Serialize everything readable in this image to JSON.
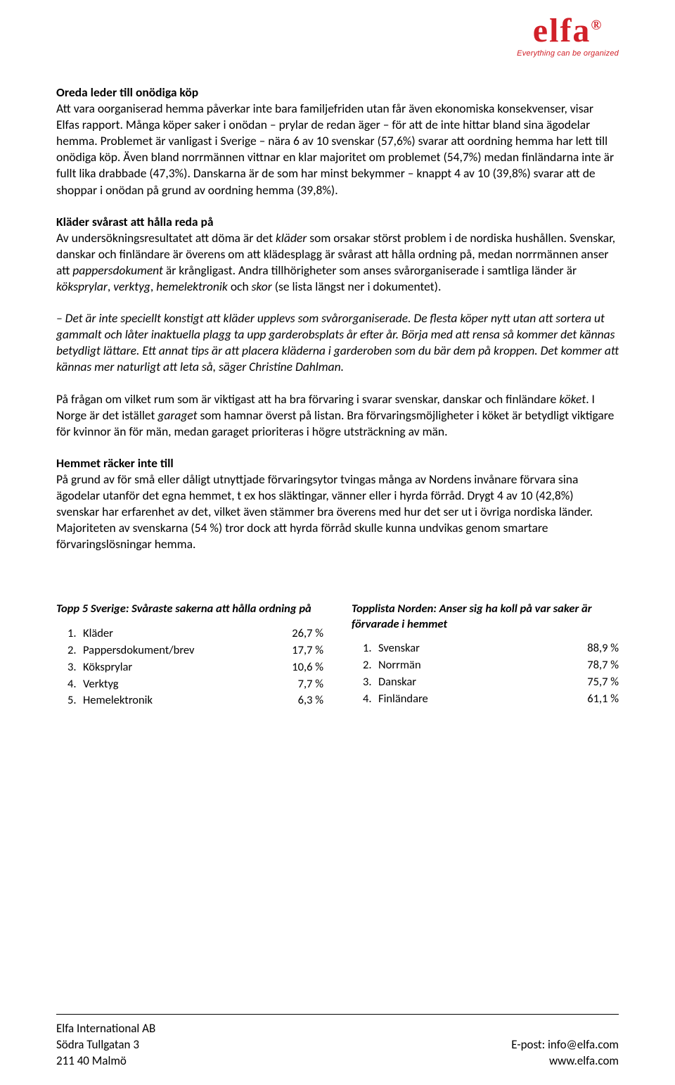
{
  "logo": {
    "text": "elfa",
    "reg": "®",
    "tagline": "Everything can be organized"
  },
  "sections": [
    {
      "heading": "Oreda leder till onödiga köp",
      "body": "Att vara oorganiserad hemma påverkar inte bara familjefriden utan får även ekonomiska konsekvenser, visar Elfas rapport. Många köper saker i onödan – prylar de redan äger – för att de inte hittar bland sina ägodelar hemma. Problemet är vanligast i Sverige – nära 6 av 10 svenskar (57,6%) svarar att oordning hemma har lett till onödiga köp. Även bland norrmännen vittnar en klar majoritet om problemet (54,7%) medan finländarna inte är fullt lika drabbade (47,3%). Danskarna är de som har minst bekymmer – knappt 4 av 10 (39,8%) svarar att de shoppar i onödan på grund av oordning hemma (39,8%)."
    },
    {
      "heading": "Kläder svårast att hålla reda på"
    }
  ],
  "p2_run1": "Av undersökningsresultatet att döma är det ",
  "p2_em1": "kläder",
  "p2_run2": " som orsakar störst problem i de nordiska hushållen. Svenskar, danskar och finländare är överens om att klädesplagg är svårast att hålla ordning på, medan norrmännen anser att ",
  "p2_em2": "pappersdokument",
  "p2_run3": " är krångligast. Andra tillhörigheter som anses svårorganiserade i samtliga länder är ",
  "p2_em3": "köksprylar",
  "p2_comma1": ", ",
  "p2_em4": "verktyg",
  "p2_comma2": ", ",
  "p2_em5": "hemelektronik",
  "p2_run4": " och ",
  "p2_em6": "skor",
  "p2_run5": " (se lista längst ner i dokumentet).",
  "quote": "– Det är inte speciellt konstigt att kläder upplevs som svårorganiserade. De flesta köper nytt utan att sortera ut gammalt och låter inaktuella plagg ta upp garderobsplats år efter år. Börja med att rensa så kommer det kännas betydligt lättare. Ett annat tips är att placera kläderna i garderoben som du bär dem på kroppen. Det kommer att kännas mer naturligt att leta så, säger Christine Dahlman.",
  "p3_run1": "På frågan om vilket rum som är viktigast att ha bra förvaring i svarar svenskar, danskar och finländare ",
  "p3_em1": "köket",
  "p3_run2": ". I Norge är det istället ",
  "p3_em2": "garaget",
  "p3_run3": " som hamnar överst på listan. Bra förvaringsmöjligheter i köket är betydligt viktigare för kvinnor än för män, medan garaget prioriteras i högre utsträckning av män.",
  "s4_heading": "Hemmet räcker inte till",
  "s4_body": "På grund av för små eller dåligt utnyttjade förvaringsytor tvingas många av Nordens invånare förvara sina ägodelar utanför det egna hemmet, t ex hos släktingar, vänner eller i hyrda förråd. Drygt 4 av 10 (42,8%) svenskar har erfarenhet av det, vilket även stämmer bra överens med hur det ser ut i övriga nordiska länder. Majoriteten av svenskarna (54 %) tror dock att hyrda förråd skulle kunna undvikas genom smartare förvaringslösningar hemma.",
  "list_left": {
    "heading": "Topp 5 Sverige: Svåraste sakerna att hålla ordning på",
    "rows": [
      {
        "n": "1.",
        "label": "Kläder",
        "val": "26,7 %"
      },
      {
        "n": "2.",
        "label": "Pappersdokument/brev",
        "val": "17,7 %"
      },
      {
        "n": "3.",
        "label": "Köksprylar",
        "val": "10,6 %"
      },
      {
        "n": "4.",
        "label": "Verktyg",
        "val": "7,7 %"
      },
      {
        "n": "5.",
        "label": "Hemelektronik",
        "val": "6,3 %"
      }
    ]
  },
  "list_right": {
    "heading": "Topplista Norden: Anser sig ha koll på var saker är förvarade i hemmet",
    "rows": [
      {
        "n": "1.",
        "label": "Svenskar",
        "val": "88,9 %"
      },
      {
        "n": "2.",
        "label": "Norrmän",
        "val": "78,7 %"
      },
      {
        "n": "3.",
        "label": "Danskar",
        "val": "75,7 %"
      },
      {
        "n": "4.",
        "label": "Finländare",
        "val": "61,1 %"
      }
    ]
  },
  "footer": {
    "left1": "Elfa International AB",
    "left2": "Södra Tullgatan 3",
    "left3": "211 40 Malmö",
    "right1": "E-post: info@elfa.com",
    "right2": "www.elfa.com"
  }
}
